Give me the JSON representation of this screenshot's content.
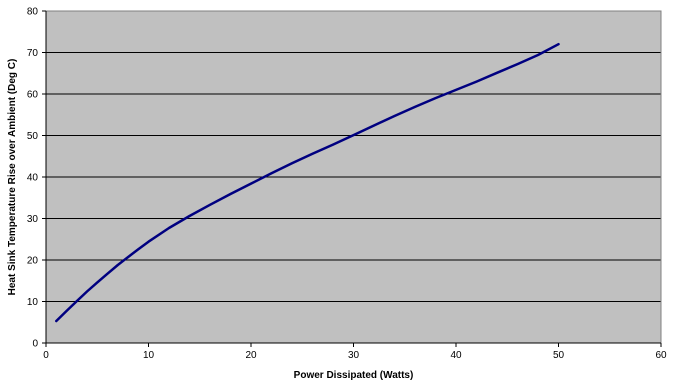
{
  "chart_data": {
    "type": "line",
    "title": "",
    "xlabel": "Power Dissipated (Watts)",
    "ylabel": "Heat Sink Temperature Rise over Ambient (Deg C)",
    "xlim": [
      0,
      60
    ],
    "ylim": [
      0,
      80
    ],
    "xticks": [
      0,
      10,
      20,
      30,
      40,
      50,
      60
    ],
    "yticks": [
      0,
      10,
      20,
      30,
      40,
      50,
      60,
      70,
      80
    ],
    "grid": "horizontal",
    "legend": "none",
    "colors": {
      "plot_background": "#c0c0c0",
      "line": "#000080",
      "grid": "#000000"
    },
    "series": [
      {
        "x": [
          1,
          2,
          3,
          4,
          5,
          6,
          7,
          8,
          9,
          10,
          12,
          14,
          16,
          18,
          20,
          22,
          24,
          26,
          28,
          30,
          32,
          34,
          36,
          38,
          40,
          42,
          44,
          46,
          48,
          50
        ],
        "y": [
          5.3,
          7.7,
          10.1,
          12.4,
          14.6,
          16.7,
          18.8,
          20.7,
          22.6,
          24.4,
          27.7,
          30.6,
          33.3,
          35.9,
          38.4,
          40.9,
          43.3,
          45.6,
          47.8,
          50.1,
          52.4,
          54.7,
          56.9,
          59.0,
          61.0,
          63.0,
          65.1,
          67.2,
          69.4,
          72.0
        ]
      }
    ]
  }
}
